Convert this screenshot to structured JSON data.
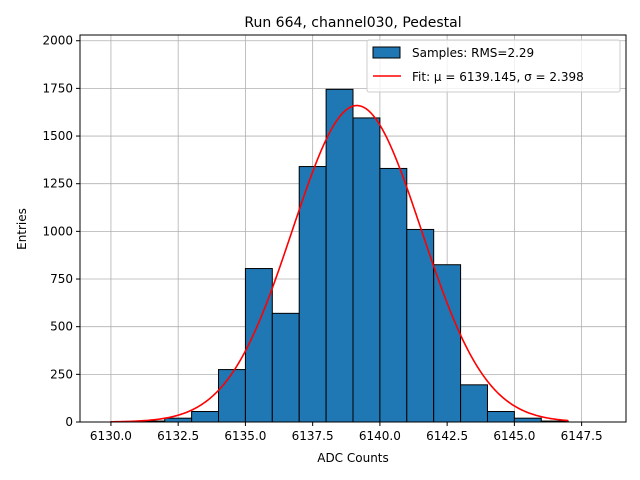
{
  "chart_data": {
    "type": "bar",
    "title": "Run 664, channel030, Pedestal",
    "xlabel": "ADC Counts",
    "ylabel": "Entries",
    "xlim": [
      6128.85,
      6149.15
    ],
    "ylim": [
      0,
      2030
    ],
    "grid": true,
    "legend_position": "top-right",
    "x_ticks": [
      6130.0,
      6132.5,
      6135.0,
      6137.5,
      6140.0,
      6142.5,
      6145.0,
      6147.5
    ],
    "x_tick_labels": [
      "6130.0",
      "6132.5",
      "6135.0",
      "6137.5",
      "6140.0",
      "6142.5",
      "6145.0",
      "6147.5"
    ],
    "y_ticks": [
      0,
      250,
      500,
      750,
      1000,
      1250,
      1500,
      1750,
      2000
    ],
    "y_tick_labels": [
      "0",
      "250",
      "500",
      "750",
      "1000",
      "1250",
      "1500",
      "1750",
      "2000"
    ],
    "histogram": {
      "name": "Samples: RMS=2.29",
      "color": "#1f77b4",
      "edge_color": "#000000",
      "bin_edges": [
        6130,
        6131,
        6132,
        6133,
        6134,
        6135,
        6136,
        6137,
        6138,
        6139,
        6140,
        6141,
        6142,
        6143,
        6144,
        6145,
        6146,
        6147,
        6148,
        6149
      ],
      "counts": [
        2,
        5,
        20,
        55,
        275,
        805,
        570,
        1340,
        1745,
        1595,
        1330,
        1010,
        825,
        195,
        55,
        20,
        5,
        0,
        0
      ]
    },
    "fit": {
      "name": "Fit: μ = 6139.145, σ = 2.398",
      "color": "#ff0000",
      "mu": 6139.145,
      "sigma": 2.398,
      "amplitude": 1660,
      "x_range": [
        6130,
        6147
      ]
    }
  }
}
